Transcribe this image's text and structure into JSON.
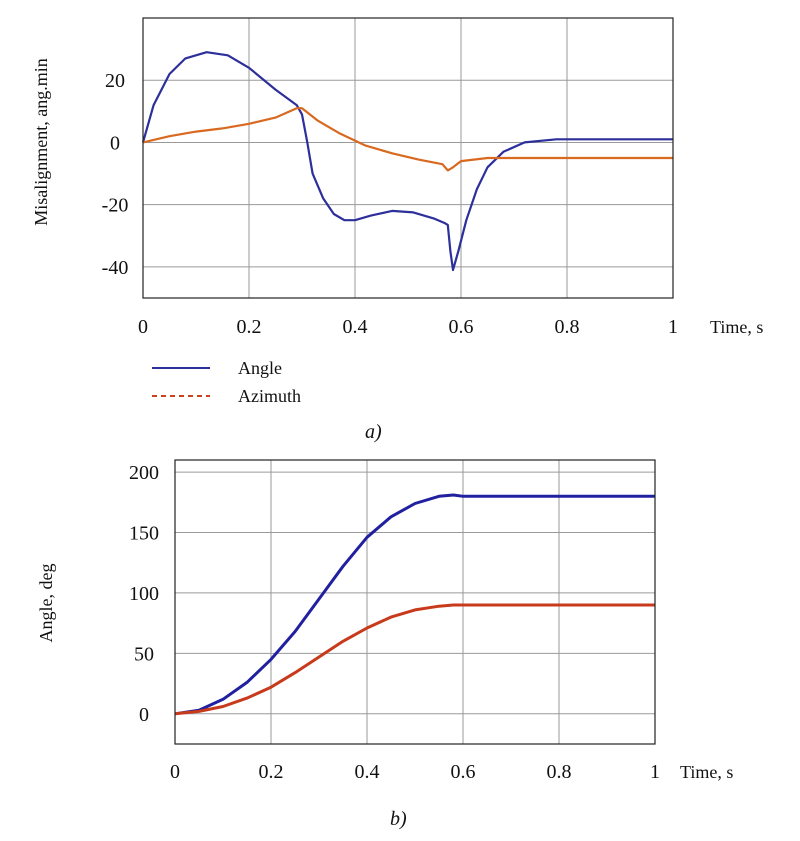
{
  "chart_data": [
    {
      "type": "line",
      "panel_label": "a)",
      "xlabel": "Time, s",
      "ylabel": "Misalignment, ang.min",
      "xlim": [
        0,
        1
      ],
      "ylim": [
        -50,
        40
      ],
      "x_ticks": [
        "0",
        "0.2",
        "0.4",
        "0.6",
        "0.8",
        "1"
      ],
      "y_ticks": [
        "20",
        "0",
        "-20",
        "-40"
      ],
      "y_tick_values": [
        20,
        0,
        -20,
        -40
      ],
      "grid": true,
      "legend_position": "below-left",
      "series": [
        {
          "name": "Angle",
          "color": "#2d2f9b",
          "style": "solid",
          "points": [
            [
              0,
              0
            ],
            [
              0.02,
              12
            ],
            [
              0.05,
              22
            ],
            [
              0.08,
              27
            ],
            [
              0.12,
              29
            ],
            [
              0.16,
              28
            ],
            [
              0.2,
              24
            ],
            [
              0.25,
              17
            ],
            [
              0.29,
              12
            ],
            [
              0.3,
              9
            ],
            [
              0.31,
              0
            ],
            [
              0.32,
              -10
            ],
            [
              0.34,
              -18
            ],
            [
              0.36,
              -23
            ],
            [
              0.38,
              -25
            ],
            [
              0.4,
              -25
            ],
            [
              0.43,
              -23.5
            ],
            [
              0.47,
              -22
            ],
            [
              0.51,
              -22.5
            ],
            [
              0.55,
              -24.5
            ],
            [
              0.57,
              -26
            ],
            [
              0.575,
              -26.5
            ],
            [
              0.58,
              -35
            ],
            [
              0.585,
              -41
            ],
            [
              0.595,
              -35
            ],
            [
              0.61,
              -25
            ],
            [
              0.63,
              -15
            ],
            [
              0.65,
              -8
            ],
            [
              0.68,
              -3
            ],
            [
              0.72,
              0
            ],
            [
              0.78,
              1
            ],
            [
              0.85,
              1
            ],
            [
              1.0,
              1
            ]
          ]
        },
        {
          "name": "Azimuth",
          "color": "#d8691f",
          "style": "dashed",
          "points": [
            [
              0,
              0
            ],
            [
              0.05,
              2
            ],
            [
              0.1,
              3.5
            ],
            [
              0.15,
              4.5
            ],
            [
              0.2,
              6
            ],
            [
              0.25,
              8
            ],
            [
              0.29,
              11
            ],
            [
              0.3,
              11
            ],
            [
              0.33,
              7
            ],
            [
              0.37,
              3
            ],
            [
              0.42,
              -1
            ],
            [
              0.47,
              -3.5
            ],
            [
              0.52,
              -5.5
            ],
            [
              0.565,
              -7
            ],
            [
              0.575,
              -9
            ],
            [
              0.585,
              -8
            ],
            [
              0.6,
              -6
            ],
            [
              0.65,
              -5
            ],
            [
              0.7,
              -5
            ],
            [
              0.8,
              -5
            ],
            [
              0.9,
              -5
            ],
            [
              1.0,
              -5
            ]
          ]
        }
      ]
    },
    {
      "type": "line",
      "panel_label": "b)",
      "xlabel": "Time, s",
      "ylabel": "Angle, deg",
      "xlim": [
        0,
        1
      ],
      "ylim": [
        -25,
        210
      ],
      "x_ticks": [
        "0",
        "0.2",
        "0.4",
        "0.6",
        "0.8",
        "1"
      ],
      "y_ticks": [
        "200",
        "150",
        "100",
        "50",
        "0"
      ],
      "y_tick_values": [
        200,
        150,
        100,
        50,
        0
      ],
      "grid": true,
      "series": [
        {
          "color": "#2020a0",
          "style": "solid",
          "points": [
            [
              0,
              0
            ],
            [
              0.05,
              3
            ],
            [
              0.1,
              12
            ],
            [
              0.15,
              26
            ],
            [
              0.2,
              45
            ],
            [
              0.25,
              68
            ],
            [
              0.3,
              95
            ],
            [
              0.35,
              122
            ],
            [
              0.4,
              146
            ],
            [
              0.45,
              163
            ],
            [
              0.5,
              174
            ],
            [
              0.55,
              180
            ],
            [
              0.58,
              181
            ],
            [
              0.6,
              180
            ],
            [
              0.7,
              180
            ],
            [
              0.8,
              180
            ],
            [
              0.9,
              180
            ],
            [
              1.0,
              180
            ]
          ]
        },
        {
          "color": "#c83a1c",
          "style": "solid",
          "points": [
            [
              0,
              0
            ],
            [
              0.05,
              2
            ],
            [
              0.1,
              6
            ],
            [
              0.15,
              13
            ],
            [
              0.2,
              22
            ],
            [
              0.25,
              34
            ],
            [
              0.3,
              47
            ],
            [
              0.35,
              60
            ],
            [
              0.4,
              71
            ],
            [
              0.45,
              80
            ],
            [
              0.5,
              86
            ],
            [
              0.55,
              89
            ],
            [
              0.58,
              90
            ],
            [
              0.6,
              90
            ],
            [
              0.7,
              90
            ],
            [
              0.8,
              90
            ],
            [
              0.9,
              90
            ],
            [
              1.0,
              90
            ]
          ]
        }
      ]
    }
  ]
}
